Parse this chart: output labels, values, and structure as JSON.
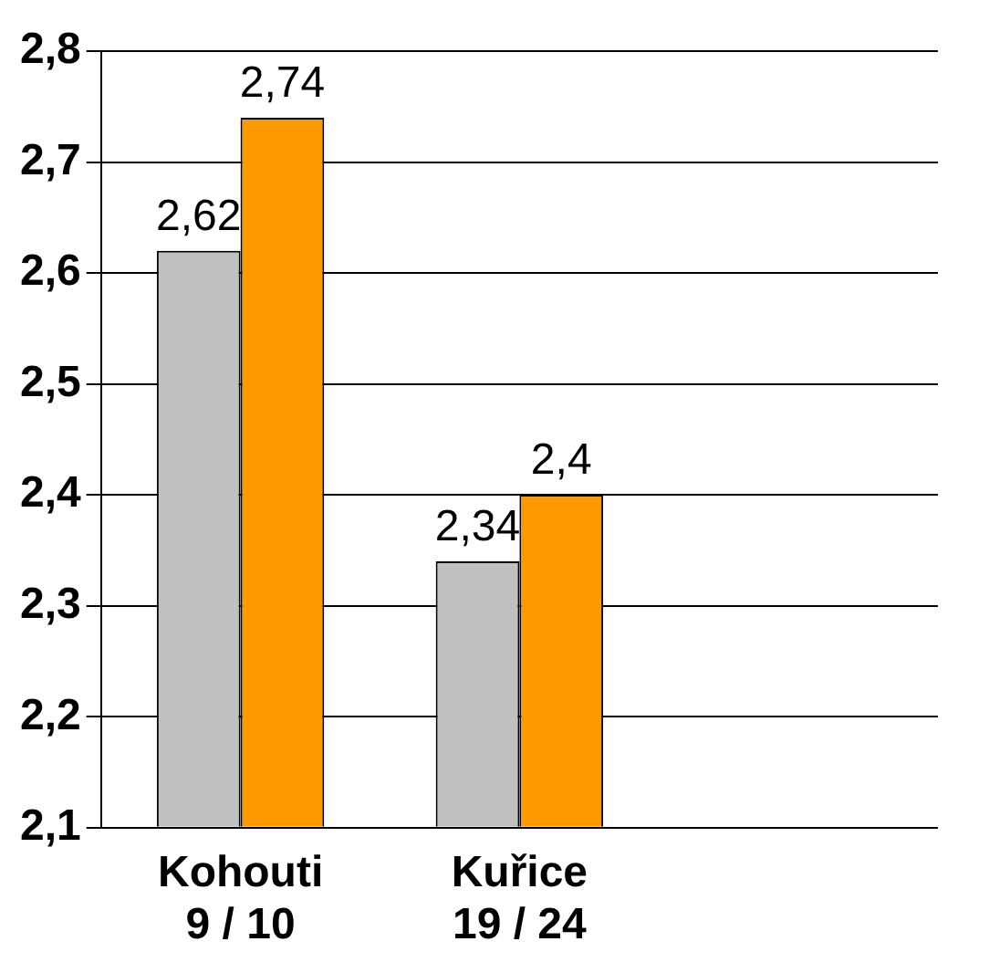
{
  "chart_data": {
    "type": "bar",
    "categories": [
      "Kohouti\n9 / 10",
      "Kuřice\n19 / 24",
      null
    ],
    "series": [
      {
        "color": "#c0c0c0",
        "values": [
          2.62,
          2.34,
          null
        ],
        "value_labels": [
          "2,62",
          "2,34",
          null
        ]
      },
      {
        "color": "#ff9900",
        "values": [
          2.74,
          2.4,
          null
        ],
        "value_labels": [
          "2,74",
          "2,4",
          null
        ]
      }
    ],
    "ylim": [
      2.1,
      2.8
    ],
    "yticks": [
      {
        "value": 2.1,
        "label": "2,1"
      },
      {
        "value": 2.2,
        "label": "2,2"
      },
      {
        "value": 2.3,
        "label": "2,3"
      },
      {
        "value": 2.4,
        "label": "2,4"
      },
      {
        "value": 2.5,
        "label": "2,5"
      },
      {
        "value": 2.6,
        "label": "2,6"
      },
      {
        "value": 2.7,
        "label": "2,7"
      },
      {
        "value": 2.8,
        "label": "2,8"
      }
    ],
    "grid": "y",
    "legend": false
  }
}
